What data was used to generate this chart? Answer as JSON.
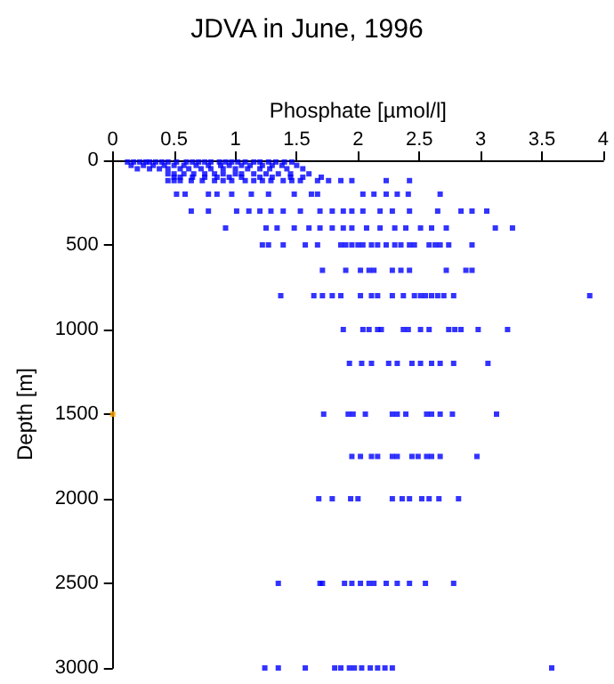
{
  "chart_data": {
    "type": "scatter",
    "title": "JDVA in June, 1996",
    "xlabel": "Phosphate [µmol/l]",
    "ylabel": "Depth [m]",
    "xlim": [
      0,
      4
    ],
    "xticks": [
      0,
      0.5,
      1,
      1.5,
      2,
      2.5,
      3,
      3.5,
      4
    ],
    "ylim": [
      3000,
      0
    ],
    "yticks": [
      0,
      500,
      1000,
      1500,
      2000,
      2500,
      3000
    ],
    "grid": false,
    "marker": "square",
    "series": [
      {
        "color": "#0000ff",
        "x": [
          0.12,
          0.17,
          0.22,
          0.27,
          0.3,
          0.35,
          0.4,
          0.45,
          0.52,
          0.6,
          0.65,
          0.7,
          0.75,
          0.8,
          0.87,
          0.92,
          0.97,
          1.02,
          1.08,
          1.15,
          1.2,
          1.27,
          1.33,
          1.4,
          1.46,
          0.15,
          0.25,
          0.33,
          0.42,
          0.5,
          0.58,
          0.68,
          0.78,
          0.88,
          0.95,
          1.05,
          1.12,
          1.22,
          1.3,
          1.38,
          1.5,
          0.2,
          0.3,
          0.38,
          0.45,
          0.55,
          0.62,
          0.72,
          0.8,
          0.9,
          1.0,
          1.1,
          1.2,
          1.28,
          1.42,
          1.55,
          0.45,
          0.5,
          0.58,
          0.66,
          0.75,
          0.83,
          0.9,
          1.0,
          1.05,
          1.15,
          1.25,
          1.35,
          1.45,
          1.6,
          0.5,
          0.55,
          0.65,
          0.75,
          0.85,
          0.95,
          1.05,
          1.2,
          1.3,
          1.45,
          1.55,
          1.7,
          0.45,
          0.5,
          0.55,
          0.64,
          0.73,
          0.83,
          0.9,
          0.97,
          1.08,
          1.15,
          1.22,
          1.29,
          1.39,
          1.46,
          1.53,
          1.67,
          1.76,
          1.86,
          1.95,
          2.23,
          2.42,
          0.52,
          0.59,
          0.78,
          0.85,
          0.97,
          1.13,
          1.27,
          1.48,
          1.62,
          1.67,
          2.04,
          2.13,
          2.23,
          2.32,
          2.41,
          2.67,
          0.64,
          0.78,
          1.01,
          1.11,
          1.2,
          1.29,
          1.39,
          1.53,
          1.69,
          1.79,
          1.88,
          1.95,
          2.04,
          2.18,
          2.28,
          2.42,
          2.65,
          2.84,
          2.93,
          3.05,
          0.92,
          1.25,
          1.34,
          1.48,
          1.6,
          1.69,
          1.79,
          1.88,
          1.95,
          2.07,
          2.18,
          2.3,
          2.39,
          2.51,
          2.6,
          2.72,
          3.12,
          3.26,
          1.22,
          1.27,
          1.39,
          1.57,
          1.67,
          1.86,
          1.9,
          1.95,
          2.0,
          2.04,
          2.11,
          2.16,
          2.23,
          2.3,
          2.35,
          2.42,
          2.46,
          2.58,
          2.63,
          2.67,
          2.74,
          2.93,
          1.71,
          1.9,
          2.02,
          2.09,
          2.13,
          2.28,
          2.35,
          2.42,
          2.72,
          2.88,
          2.93,
          1.37,
          1.64,
          1.71,
          1.79,
          1.86,
          2.02,
          2.11,
          2.16,
          2.28,
          2.37,
          2.46,
          2.51,
          2.55,
          2.6,
          2.65,
          2.7,
          2.78,
          3.89,
          1.88,
          2.04,
          2.09,
          2.16,
          2.19,
          2.37,
          2.41,
          2.51,
          2.58,
          2.74,
          2.79,
          2.84,
          2.98,
          3.22,
          1.93,
          2.03,
          2.11,
          2.25,
          2.32,
          2.44,
          2.51,
          2.6,
          2.67,
          2.78,
          3.06,
          1.72,
          1.92,
          1.96,
          2.06,
          2.28,
          2.32,
          2.39,
          2.56,
          2.6,
          2.67,
          2.77,
          3.13,
          1.95,
          2.02,
          2.11,
          2.16,
          2.28,
          2.32,
          2.44,
          2.49,
          2.56,
          2.6,
          2.67,
          2.97,
          1.68,
          1.79,
          1.94,
          2.0,
          2.28,
          2.36,
          2.42,
          2.52,
          2.58,
          2.66,
          2.82,
          1.35,
          1.69,
          1.71,
          1.89,
          1.95,
          2.02,
          2.09,
          2.13,
          2.23,
          2.32,
          2.42,
          2.55,
          2.78,
          1.24,
          1.35,
          1.57,
          1.81,
          1.86,
          1.93,
          1.97,
          2.03,
          2.1,
          2.16,
          2.22,
          2.28,
          3.58
        ],
        "values": [
          10,
          10,
          10,
          10,
          10,
          10,
          10,
          10,
          10,
          10,
          10,
          10,
          10,
          10,
          10,
          10,
          10,
          10,
          10,
          10,
          10,
          10,
          10,
          10,
          10,
          30,
          30,
          30,
          30,
          30,
          30,
          30,
          30,
          30,
          30,
          30,
          30,
          30,
          30,
          30,
          30,
          50,
          50,
          50,
          50,
          50,
          50,
          50,
          50,
          50,
          50,
          50,
          50,
          50,
          50,
          50,
          80,
          80,
          80,
          80,
          80,
          80,
          80,
          80,
          80,
          80,
          80,
          80,
          80,
          80,
          100,
          100,
          100,
          100,
          100,
          100,
          100,
          100,
          100,
          100,
          100,
          100,
          120,
          120,
          120,
          120,
          120,
          120,
          120,
          120,
          120,
          120,
          120,
          120,
          120,
          120,
          120,
          120,
          120,
          120,
          120,
          120,
          120,
          200,
          200,
          200,
          200,
          200,
          200,
          200,
          200,
          200,
          200,
          200,
          200,
          200,
          200,
          200,
          200,
          300,
          300,
          300,
          300,
          300,
          300,
          300,
          300,
          300,
          300,
          300,
          300,
          300,
          300,
          300,
          300,
          300,
          300,
          300,
          300,
          400,
          400,
          400,
          400,
          400,
          400,
          400,
          400,
          400,
          400,
          400,
          400,
          400,
          400,
          400,
          400,
          400,
          400,
          500,
          500,
          500,
          500,
          500,
          500,
          500,
          500,
          500,
          500,
          500,
          500,
          500,
          500,
          500,
          500,
          500,
          500,
          500,
          500,
          500,
          500,
          650,
          650,
          650,
          650,
          650,
          650,
          650,
          650,
          650,
          650,
          650,
          800,
          800,
          800,
          800,
          800,
          800,
          800,
          800,
          800,
          800,
          800,
          800,
          800,
          800,
          800,
          800,
          800,
          800,
          1000,
          1000,
          1000,
          1000,
          1000,
          1000,
          1000,
          1000,
          1000,
          1000,
          1000,
          1000,
          1000,
          1000,
          1200,
          1200,
          1200,
          1200,
          1200,
          1200,
          1200,
          1200,
          1200,
          1200,
          1200,
          1500,
          1500,
          1500,
          1500,
          1500,
          1500,
          1500,
          1500,
          1500,
          1500,
          1500,
          1500,
          1750,
          1750,
          1750,
          1750,
          1750,
          1750,
          1750,
          1750,
          1750,
          1750,
          1750,
          1750,
          2000,
          2000,
          2000,
          2000,
          2000,
          2000,
          2000,
          2000,
          2000,
          2000,
          2000,
          2500,
          2500,
          2500,
          2500,
          2500,
          2500,
          2500,
          2500,
          2500,
          2500,
          2500,
          2500,
          2500,
          3000,
          3000,
          3000,
          3000,
          3000,
          3000,
          3000,
          3000,
          3000,
          3000,
          3000,
          3000,
          3000
        ]
      },
      {
        "color": "#ffa500",
        "x": [
          0
        ],
        "values": [
          1500
        ]
      }
    ]
  }
}
